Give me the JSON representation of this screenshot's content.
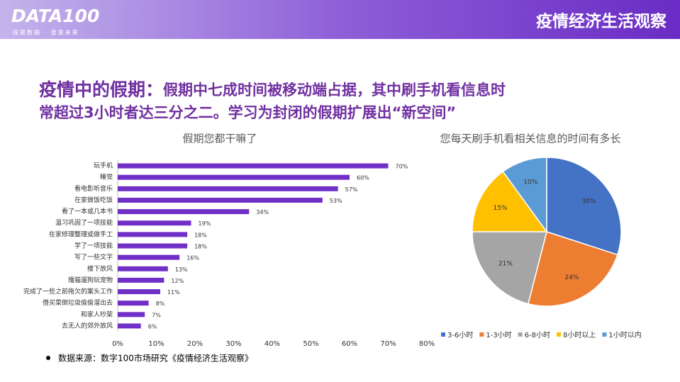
{
  "header": {
    "logo": "DATA100",
    "tagline": "探索数据 · 激发未来",
    "title": "疫情经济生活观察"
  },
  "headline": {
    "lead": "疫情中的假期：",
    "lines": [
      "假期中七成时间被移动端占据，其中刷手机看信息时",
      "常超过3小时者达三分之二。学习为封闭的假期扩展出“新空间”"
    ]
  },
  "chart_data": [
    {
      "type": "bar",
      "title": "假期您都干嘛了",
      "color": "#7030c8",
      "categories": [
        "玩手机",
        "睡觉",
        "看电影听音乐",
        "在家做饭吃饭",
        "看了一本或几本书",
        "温习巩固了一项技能",
        "在家修理整理或做手工",
        "学了一项技能",
        "写了一些文字",
        "楼下放风",
        "撸猫遛狗玩宠物",
        "完成了一些之前拖欠的案头工作",
        "借买菜倒垃圾偷偷溜出去",
        "和家人吵架",
        "去无人的郊外放风"
      ],
      "values": [
        70,
        60,
        57,
        53,
        34,
        19,
        18,
        18,
        16,
        13,
        12,
        11,
        8,
        7,
        6
      ],
      "value_labels": [
        "70%",
        "60%",
        "57%",
        "53%",
        "34%",
        "19%",
        "18%",
        "18%",
        "16%",
        "13%",
        "12%",
        "11%",
        "8%",
        "7%",
        "6%"
      ],
      "xlim": [
        0,
        80
      ],
      "xticks": [
        {
          "value": 0,
          "label": "0%"
        },
        {
          "value": 10,
          "label": "10%"
        },
        {
          "value": 20,
          "label": "20%"
        },
        {
          "value": 30,
          "label": "30%"
        },
        {
          "value": 40,
          "label": "40%"
        },
        {
          "value": 50,
          "label": "50%"
        },
        {
          "value": 60,
          "label": "60%"
        },
        {
          "value": 70,
          "label": "70%"
        },
        {
          "value": 80,
          "label": "80%"
        }
      ]
    },
    {
      "type": "pie",
      "title": "您每天刷手机看相关信息的时间有多长",
      "categories": [
        "3-6小时",
        "1-3小时",
        "6-8小时",
        "8小时以上",
        "1小时以内"
      ],
      "values": [
        30,
        24,
        21,
        15,
        10
      ],
      "value_labels": [
        "30%",
        "24%",
        "21%",
        "15%",
        "10%"
      ],
      "colors": [
        "#4472c4",
        "#ed7d31",
        "#a5a5a5",
        "#ffc000",
        "#5b9bd5"
      ],
      "legend": "bottom"
    }
  ],
  "source": "数据来源：数字100市场研究《疫情经济生活观察》"
}
